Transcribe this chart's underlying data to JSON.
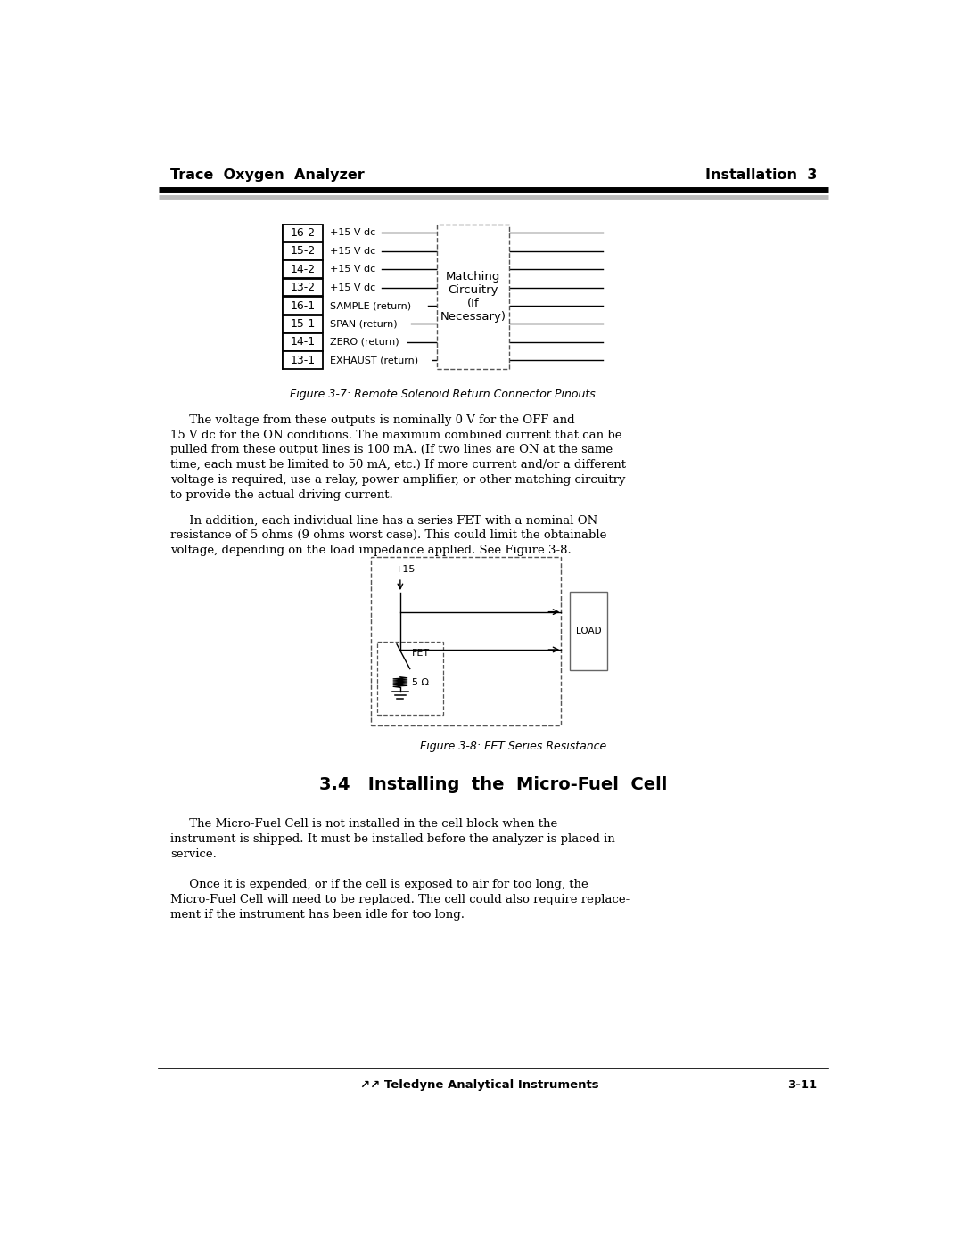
{
  "page_width": 10.8,
  "page_height": 13.97,
  "bg_color": "#ffffff",
  "header_left": "Trace  Oxygen  Analyzer",
  "header_right": "Installation  3",
  "footer_center": "↗↗ Teledyne Analytical Instruments",
  "footer_right": "3-11",
  "figure3_7_caption": "Figure 3-7: Remote Solenoid Return Connector Pinouts",
  "figure3_8_caption": "Figure 3-8: FET Series Resistance",
  "section_title": "3.4   Installing  the  Micro-Fuel  Cell",
  "connector_rows": [
    {
      "pin": "16-2",
      "label": "+15 V dc"
    },
    {
      "pin": "15-2",
      "label": "+15 V dc"
    },
    {
      "pin": "14-2",
      "label": "+15 V dc"
    },
    {
      "pin": "13-2",
      "label": "+15 V dc"
    },
    {
      "pin": "16-1",
      "label": "SAMPLE (return)"
    },
    {
      "pin": "15-1",
      "label": "SPAN (return)"
    },
    {
      "pin": "14-1",
      "label": "ZERO (return)"
    },
    {
      "pin": "13-1",
      "label": "EXHAUST (return)"
    }
  ],
  "matching_box_text": "Matching\nCircuitry\n(If\nNecessary)",
  "body_para1": "     The voltage from these outputs is nominally 0 V for the OFF and\n15 V dc for the ON conditions. The maximum combined current that can be\npulled from these output lines is 100 mA. (If two lines are ON at the same\ntime, each must be limited to 50 mA, etc.) If more current and/or a different\nvoltage is required, use a relay, power amplifier, or other matching circuitry\nto provide the actual driving current.",
  "body_para2": "     In addition, each individual line has a series FET with a nominal ON\nresistance of 5 ohms (9 ohms worst case). This could limit the obtainable\nvoltage, depending on the load impedance applied. See Figure 3-8.",
  "body_para3": "     The Micro-Fuel Cell is not installed in the cell block when the\ninstrument is shipped. It must be installed before the analyzer is placed in\nservice.",
  "body_para4": "     Once it is expended, or if the cell is exposed to air for too long, the\nMicro-Fuel Cell will need to be replaced. The cell could also require replace-\nment if the instrument has been idle for too long."
}
